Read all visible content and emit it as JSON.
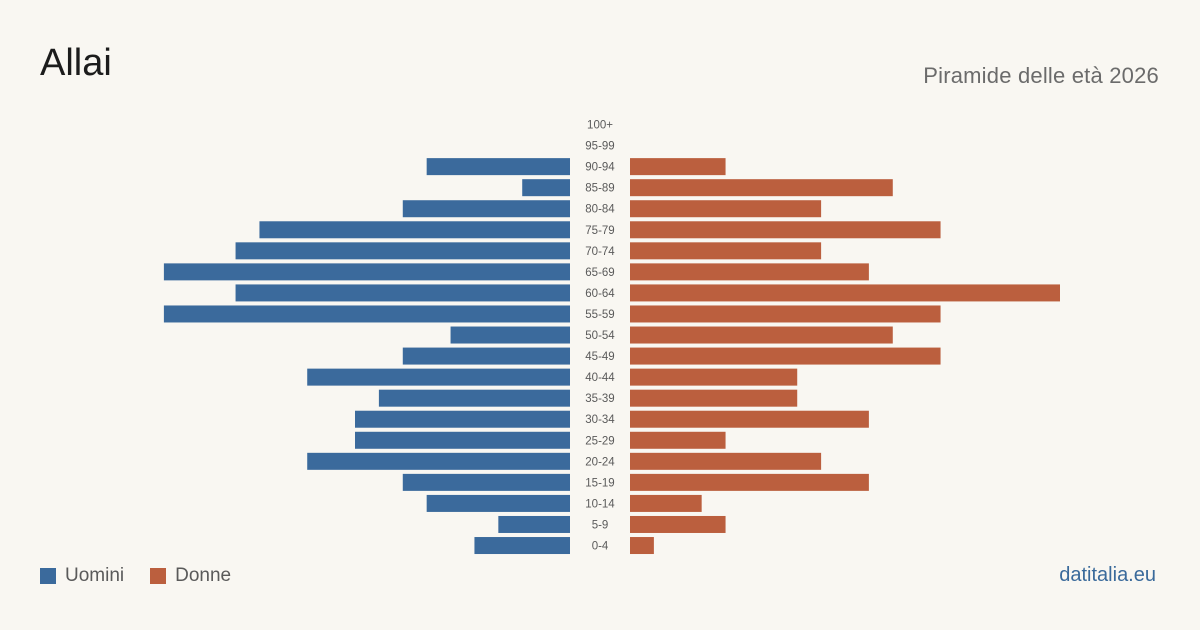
{
  "header": {
    "title": "Allai",
    "subtitle": "Piramide delle età 2026"
  },
  "legend": {
    "men_label": "Uomini",
    "women_label": "Donne"
  },
  "colors": {
    "men": "#3b6a9c",
    "women": "#bb5f3e",
    "background": "#f9f7f2",
    "tick_label": "#5a5a5a"
  },
  "footer": {
    "source": "datitalia.eu"
  },
  "chart_data": {
    "type": "bar",
    "orientation": "horizontal-population-pyramid",
    "categories": [
      "100+",
      "95-99",
      "90-94",
      "85-89",
      "80-84",
      "75-79",
      "70-74",
      "65-69",
      "60-64",
      "55-59",
      "50-54",
      "45-49",
      "40-44",
      "35-39",
      "30-34",
      "25-29",
      "20-24",
      "15-19",
      "10-14",
      "5-9",
      "0-4"
    ],
    "series": [
      {
        "name": "Uomini",
        "side": "left",
        "values": [
          0,
          0,
          6,
          2,
          7,
          13,
          14,
          17,
          14,
          17,
          5,
          7,
          11,
          8,
          9,
          9,
          11,
          7,
          6,
          3,
          4
        ]
      },
      {
        "name": "Donne",
        "side": "right",
        "values": [
          0,
          0,
          4,
          11,
          8,
          13,
          8,
          10,
          18,
          13,
          11,
          13,
          7,
          7,
          10,
          4,
          8,
          10,
          3,
          4,
          1
        ]
      }
    ],
    "xlim": [
      0,
      18
    ],
    "grid": false,
    "legend_position": "bottom-left"
  }
}
